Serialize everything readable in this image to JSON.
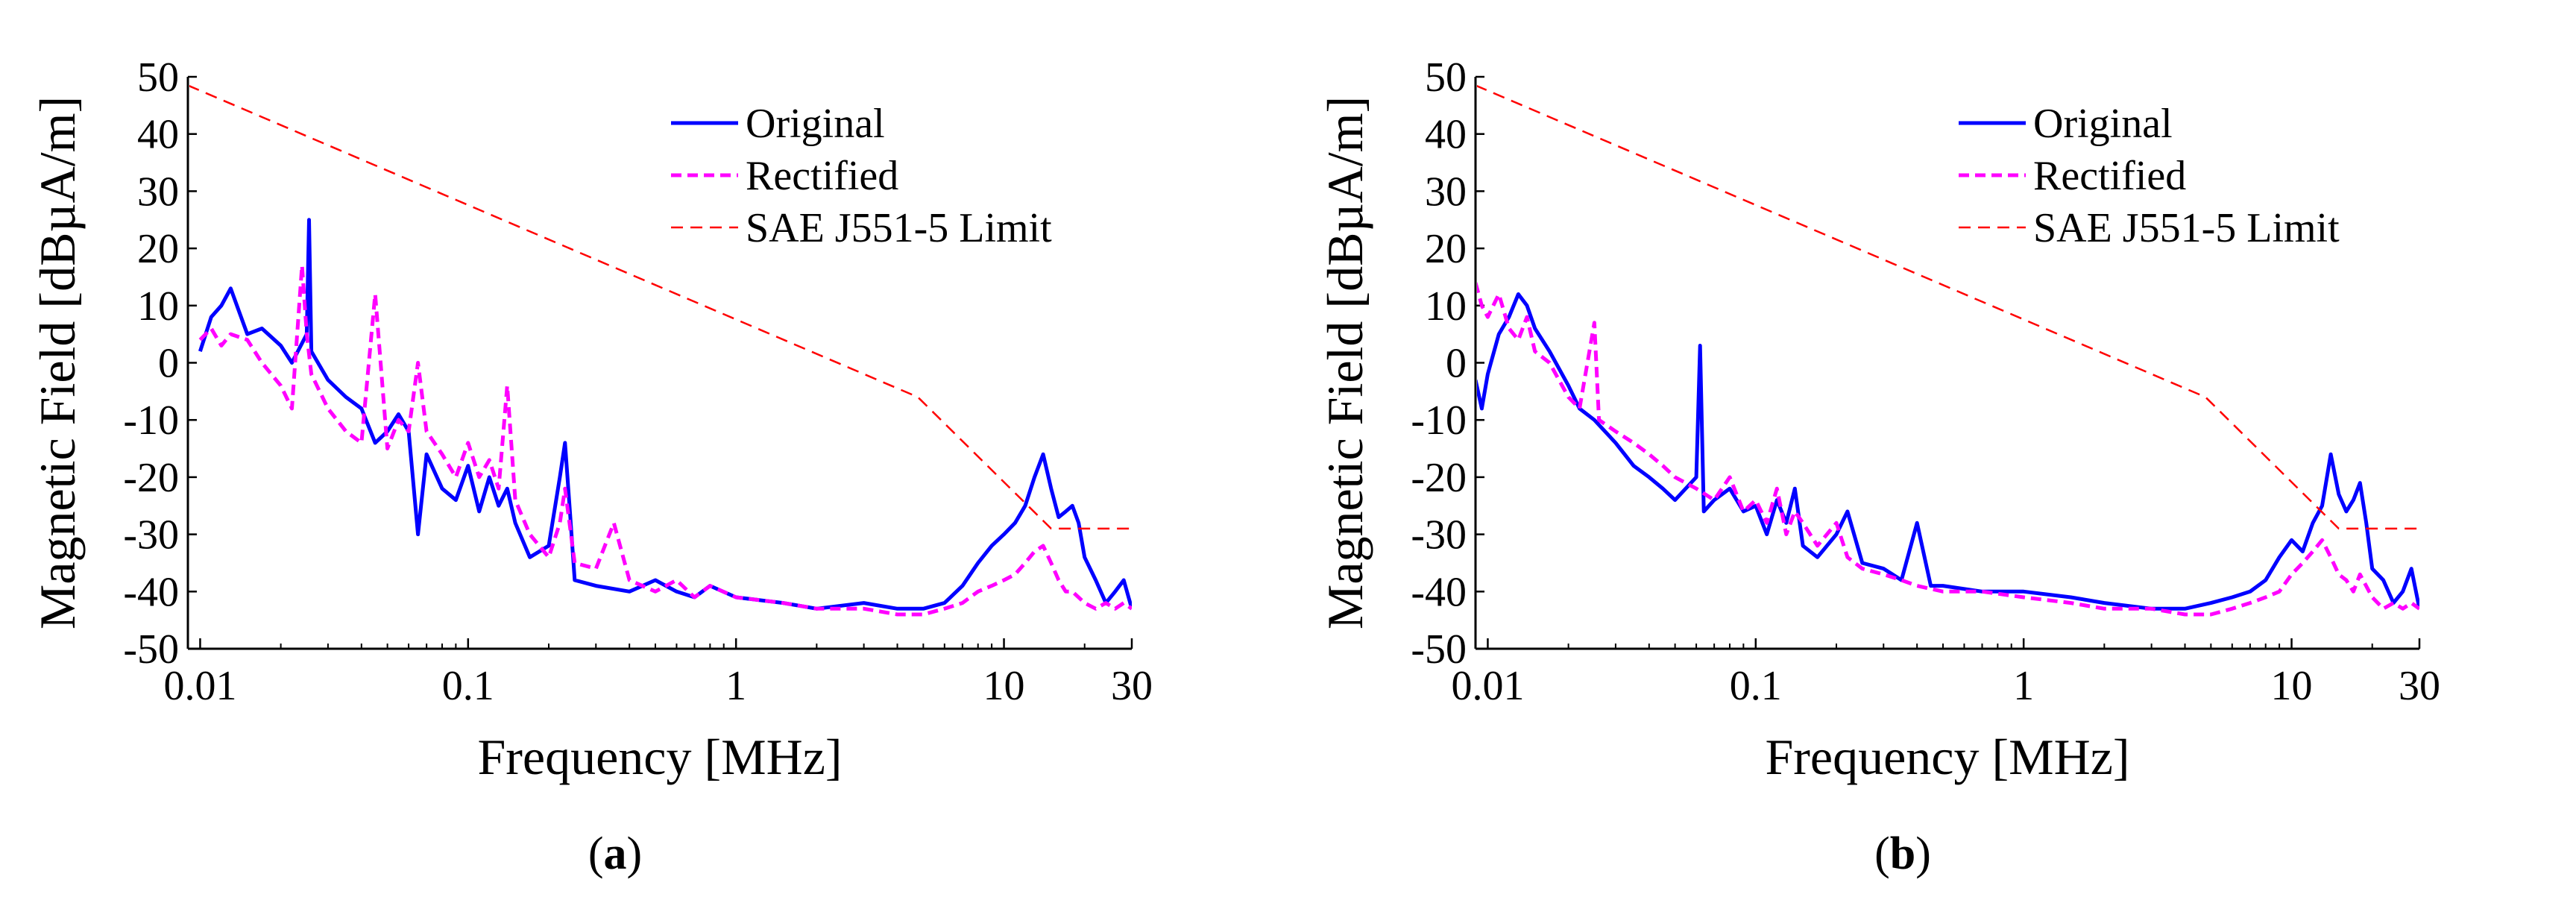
{
  "chart_data": [
    {
      "id": "a",
      "type": "line",
      "caption_open": "(",
      "caption_letter": "a",
      "caption_close": ")",
      "xlabel": "Frequency [MHz]",
      "ylabel": "Magnetic Field  [dBµA/m]",
      "xscale": "log",
      "xlim": [
        0.009,
        30
      ],
      "ylim": [
        -50,
        50
      ],
      "xticks": [
        0.01,
        0.1,
        1,
        10,
        30
      ],
      "xtick_labels": [
        "0.01",
        "0.1",
        "1",
        "10",
        "30"
      ],
      "yticks": [
        -50,
        -40,
        -30,
        -20,
        -10,
        0,
        10,
        20,
        30,
        40,
        50
      ],
      "ytick_labels": [
        "-50",
        "-40",
        "-30",
        "-20",
        "-10",
        "0",
        "10",
        "20",
        "30",
        "40",
        "50"
      ],
      "legend_position": "top-right",
      "series": [
        {
          "name": "Original",
          "style": "solid",
          "color": "#0000ff",
          "x": [
            0.01,
            0.011,
            0.012,
            0.013,
            0.015,
            0.017,
            0.02,
            0.022,
            0.025,
            0.0255,
            0.026,
            0.03,
            0.035,
            0.04,
            0.045,
            0.05,
            0.055,
            0.06,
            0.065,
            0.07,
            0.08,
            0.09,
            0.1,
            0.11,
            0.12,
            0.13,
            0.14,
            0.15,
            0.17,
            0.2,
            0.22,
            0.23,
            0.24,
            0.25,
            0.3,
            0.4,
            0.5,
            0.6,
            0.7,
            0.8,
            1.0,
            1.5,
            2,
            3,
            4,
            5,
            6,
            7,
            8,
            9,
            10,
            11,
            12,
            13,
            14,
            15,
            16,
            17,
            18,
            19,
            20,
            22,
            24,
            26,
            28,
            30
          ],
          "values": [
            2,
            8,
            10,
            13,
            5,
            6,
            3,
            0,
            5,
            25,
            2,
            -3,
            -6,
            -8,
            -14,
            -12,
            -9,
            -12,
            -30,
            -16,
            -22,
            -24,
            -18,
            -26,
            -20,
            -25,
            -22,
            -28,
            -34,
            -32,
            -20,
            -14,
            -26,
            -38,
            -39,
            -40,
            -38,
            -40,
            -41,
            -39,
            -41,
            -42,
            -43,
            -42,
            -43,
            -43,
            -42,
            -39,
            -35,
            -32,
            -30,
            -28,
            -25,
            -20,
            -16,
            -22,
            -27,
            -26,
            -25,
            -28,
            -34,
            -38,
            -42,
            -40,
            -38,
            -43
          ]
        },
        {
          "name": "Rectified",
          "style": "dashed",
          "color": "#ff00ff",
          "x": [
            0.01,
            0.011,
            0.012,
            0.013,
            0.015,
            0.017,
            0.02,
            0.022,
            0.024,
            0.025,
            0.026,
            0.03,
            0.035,
            0.04,
            0.045,
            0.05,
            0.055,
            0.06,
            0.065,
            0.07,
            0.08,
            0.09,
            0.1,
            0.11,
            0.12,
            0.13,
            0.14,
            0.15,
            0.17,
            0.2,
            0.22,
            0.23,
            0.25,
            0.3,
            0.35,
            0.4,
            0.5,
            0.6,
            0.7,
            0.8,
            1.0,
            1.5,
            2,
            3,
            4,
            5,
            6,
            7,
            8,
            9,
            10,
            11,
            12,
            13,
            14,
            15,
            16,
            17,
            18,
            20,
            22,
            24,
            26,
            28,
            30
          ],
          "values": [
            4,
            6,
            3,
            5,
            4,
            0,
            -4,
            -8,
            17,
            5,
            -2,
            -8,
            -12,
            -14,
            12,
            -15,
            -10,
            -12,
            0,
            -12,
            -16,
            -20,
            -14,
            -20,
            -17,
            -22,
            -4,
            -24,
            -30,
            -34,
            -28,
            -22,
            -35,
            -36,
            -28,
            -38,
            -40,
            -38,
            -41,
            -39,
            -41,
            -42,
            -43,
            -43,
            -44,
            -44,
            -43,
            -42,
            -40,
            -39,
            -38,
            -37,
            -35,
            -33,
            -32,
            -35,
            -38,
            -40,
            -40,
            -42,
            -43,
            -42,
            -43,
            -42,
            -43
          ]
        },
        {
          "name": "SAE J551-5 Limit",
          "style": "dashed-thin",
          "color": "#ff0000",
          "x": [
            0.009,
            4.77,
            15,
            30
          ],
          "values": [
            48.5,
            -6,
            -29,
            -29
          ]
        }
      ]
    },
    {
      "id": "b",
      "type": "line",
      "caption_open": "(",
      "caption_letter": "b",
      "caption_close": ")",
      "xlabel": "Frequency [MHz]",
      "ylabel": "Magnetic Field  [dBµA/m]",
      "xscale": "log",
      "xlim": [
        0.009,
        30
      ],
      "ylim": [
        -50,
        50
      ],
      "xticks": [
        0.01,
        0.1,
        1,
        10,
        30
      ],
      "xtick_labels": [
        "0.01",
        "0.1",
        "1",
        "10",
        "30"
      ],
      "yticks": [
        -50,
        -40,
        -30,
        -20,
        -10,
        0,
        10,
        20,
        30,
        40,
        50
      ],
      "ytick_labels": [
        "-50",
        "-40",
        "-30",
        "-20",
        "-10",
        "0",
        "10",
        "20",
        "30",
        "40",
        "50"
      ],
      "legend_position": "top-right",
      "series": [
        {
          "name": "Original",
          "style": "solid",
          "color": "#0000ff",
          "x": [
            0.009,
            0.0095,
            0.01,
            0.011,
            0.012,
            0.013,
            0.014,
            0.015,
            0.017,
            0.02,
            0.022,
            0.025,
            0.03,
            0.035,
            0.04,
            0.045,
            0.05,
            0.06,
            0.062,
            0.064,
            0.07,
            0.08,
            0.09,
            0.1,
            0.11,
            0.12,
            0.13,
            0.14,
            0.15,
            0.17,
            0.2,
            0.22,
            0.25,
            0.3,
            0.35,
            0.4,
            0.45,
            0.5,
            0.7,
            1.0,
            1.5,
            2,
            3,
            4,
            5,
            6,
            7,
            8,
            9,
            10,
            11,
            12,
            13,
            14,
            15,
            16,
            17,
            18,
            19,
            20,
            22,
            24,
            26,
            28,
            30
          ],
          "values": [
            -3,
            -8,
            -2,
            5,
            8,
            12,
            10,
            6,
            2,
            -4,
            -8,
            -10,
            -14,
            -18,
            -20,
            -22,
            -24,
            -20,
            3,
            -26,
            -24,
            -22,
            -26,
            -25,
            -30,
            -24,
            -28,
            -22,
            -32,
            -34,
            -30,
            -26,
            -35,
            -36,
            -38,
            -28,
            -39,
            -39,
            -40,
            -40,
            -41,
            -42,
            -43,
            -43,
            -42,
            -41,
            -40,
            -38,
            -34,
            -31,
            -33,
            -28,
            -25,
            -16,
            -23,
            -26,
            -24,
            -21,
            -28,
            -36,
            -38,
            -42,
            -40,
            -36,
            -43
          ]
        },
        {
          "name": "Rectified",
          "style": "dashed",
          "color": "#ff00ff",
          "x": [
            0.009,
            0.0095,
            0.01,
            0.011,
            0.012,
            0.013,
            0.014,
            0.015,
            0.017,
            0.02,
            0.022,
            0.025,
            0.026,
            0.03,
            0.035,
            0.04,
            0.045,
            0.05,
            0.06,
            0.07,
            0.08,
            0.09,
            0.1,
            0.11,
            0.12,
            0.13,
            0.14,
            0.15,
            0.17,
            0.2,
            0.22,
            0.25,
            0.3,
            0.35,
            0.4,
            0.5,
            0.7,
            1.0,
            1.5,
            2,
            3,
            4,
            5,
            6,
            7,
            8,
            9,
            10,
            11,
            12,
            13,
            14,
            15,
            16,
            17,
            18,
            20,
            22,
            24,
            26,
            28,
            30
          ],
          "values": [
            14,
            10,
            8,
            12,
            6,
            4,
            8,
            2,
            0,
            -6,
            -8,
            7,
            -10,
            -12,
            -14,
            -16,
            -18,
            -20,
            -22,
            -24,
            -20,
            -26,
            -24,
            -28,
            -22,
            -30,
            -26,
            -28,
            -32,
            -28,
            -34,
            -36,
            -37,
            -38,
            -39,
            -40,
            -40,
            -41,
            -42,
            -43,
            -43,
            -44,
            -44,
            -43,
            -42,
            -41,
            -40,
            -37,
            -35,
            -33,
            -31,
            -34,
            -37,
            -38,
            -40,
            -37,
            -41,
            -43,
            -42,
            -43,
            -42,
            -43
          ]
        },
        {
          "name": "SAE J551-5 Limit",
          "style": "dashed-thin",
          "color": "#ff0000",
          "x": [
            0.009,
            4.77,
            15,
            30
          ],
          "values": [
            48.5,
            -6,
            -29,
            -29
          ]
        }
      ]
    }
  ]
}
